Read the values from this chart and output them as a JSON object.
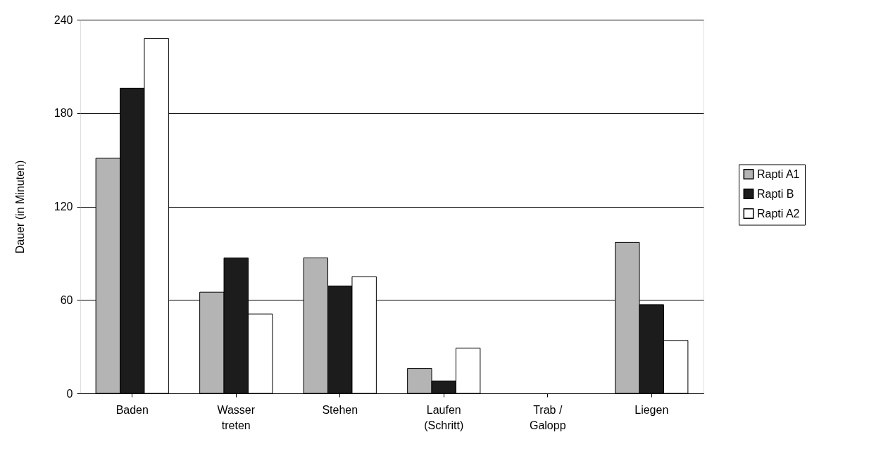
{
  "chart_data": {
    "type": "bar",
    "ylabel": "Dauer (in Minuten)",
    "categories": [
      "Baden",
      "Wasser\ntreten",
      "Stehen",
      "Laufen\n(Schritt)",
      "Trab /\nGalopp",
      "Liegen"
    ],
    "series": [
      {
        "name": "Rapti A1",
        "color": "#b4b4b4",
        "values": [
          151,
          65,
          87,
          16,
          null,
          97
        ]
      },
      {
        "name": "Rapti B",
        "color": "#1c1c1c",
        "values": [
          196,
          87,
          69,
          8,
          null,
          57
        ]
      },
      {
        "name": "Rapti A2",
        "color": "#ffffff",
        "values": [
          228,
          51,
          75,
          29,
          null,
          34
        ]
      }
    ],
    "ylim": [
      0,
      240
    ],
    "yticks": [
      0,
      60,
      120,
      180,
      240
    ],
    "grid": "y",
    "legend": "right"
  }
}
